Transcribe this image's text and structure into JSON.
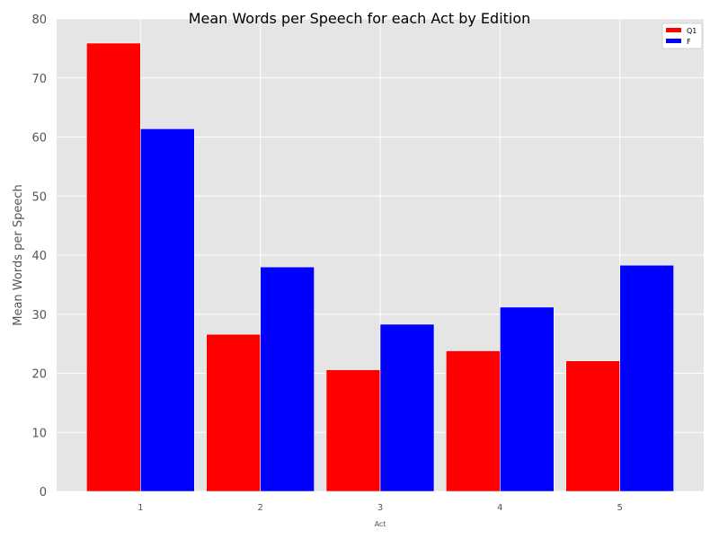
{
  "chart_data": {
    "type": "bar",
    "title": "Mean Words per Speech for each Act by Edition",
    "xlabel": "Act",
    "ylabel": "Mean Words per Speech",
    "categories": [
      "1",
      "2",
      "3",
      "4",
      "5"
    ],
    "series": [
      {
        "name": "Q1",
        "color": "#ff0000",
        "values": [
          75.9,
          26.6,
          20.6,
          23.8,
          22.1
        ]
      },
      {
        "name": "F",
        "color": "#0000ff",
        "values": [
          61.4,
          38.0,
          28.3,
          31.2,
          38.3
        ]
      }
    ],
    "ylim": [
      0,
      80
    ],
    "yticks": [
      0,
      10,
      20,
      30,
      40,
      50,
      60,
      70,
      80
    ],
    "grid": true,
    "legend_position": "top-right",
    "background": "#e5e5e5",
    "grid_color": "#ffffff"
  }
}
